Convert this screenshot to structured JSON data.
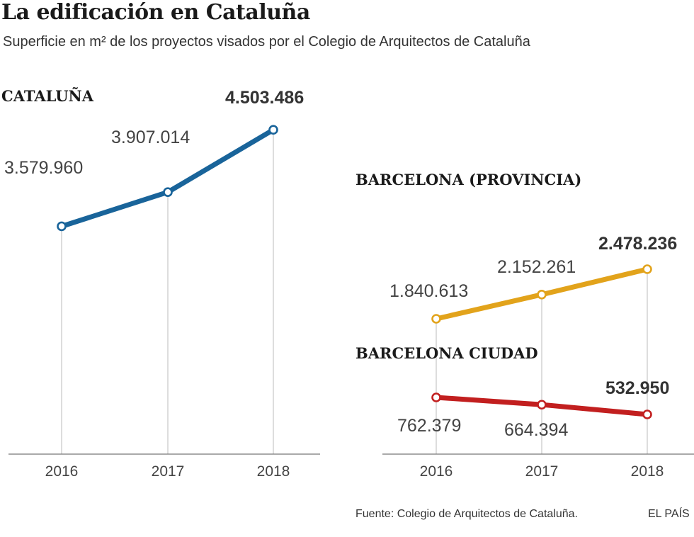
{
  "header": {
    "title": "La edificación en Cataluña",
    "subtitle": "Superficie en m² de los proyectos visados por el Colegio de Arquitectos de Cataluña"
  },
  "footer": {
    "source": "Fuente: Colegio de Arquitectos de Cataluña.",
    "brand": "EL PAÍS"
  },
  "chart_data": [
    {
      "type": "line",
      "title": "CATALUÑA",
      "x": [
        "2016",
        "2017",
        "2018"
      ],
      "values": [
        3579960,
        3907014,
        4503486
      ],
      "labels": [
        "3.579.960",
        "3.907.014",
        "4.503.486"
      ],
      "color": "#19649a",
      "ylim": [
        1400000,
        4600000
      ]
    },
    {
      "type": "line",
      "title": "BARCELONA (PROVINCIA)",
      "x": [
        "2016",
        "2017",
        "2018"
      ],
      "values": [
        1840613,
        2152261,
        2478236
      ],
      "labels": [
        "1.840.613",
        "2.152.261",
        "2.478.236"
      ],
      "color": "#e2a31b",
      "ylim": [
        0,
        2750000
      ]
    },
    {
      "type": "line",
      "title": "BARCELONA CIUDAD",
      "x": [
        "2016",
        "2017",
        "2018"
      ],
      "values": [
        762379,
        664394,
        532950
      ],
      "labels": [
        "762.379",
        "664.394",
        "532.950"
      ],
      "color": "#c21f1f",
      "ylim": [
        0,
        2750000
      ]
    }
  ]
}
